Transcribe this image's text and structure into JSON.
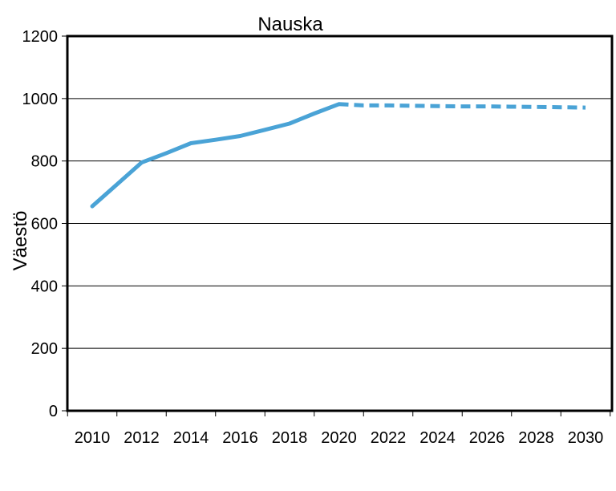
{
  "chart_data": {
    "type": "line",
    "title": "Nauska",
    "ylabel": "Väestö",
    "xlabel": "",
    "x_ticks": [
      "2010",
      "2012",
      "2014",
      "2016",
      "2018",
      "2020",
      "2022",
      "2024",
      "2026",
      "2028",
      "2030"
    ],
    "y_ticks": [
      "0",
      "200",
      "400",
      "600",
      "800",
      "1000",
      "1200"
    ],
    "xlim": [
      2010,
      2030
    ],
    "ylim": [
      0,
      1200
    ],
    "grid": true,
    "legend": "none",
    "series": [
      {
        "style": "solid",
        "color": "#4aa3d6",
        "x": [
          2010,
          2011,
          2012,
          2013,
          2014,
          2015,
          2016,
          2017,
          2018,
          2019,
          2020
        ],
        "values": [
          655,
          725,
          795,
          825,
          857,
          868,
          880,
          900,
          920,
          952,
          982
        ]
      },
      {
        "style": "dashed",
        "color": "#4aa3d6",
        "x": [
          2020,
          2021,
          2022,
          2023,
          2024,
          2025,
          2026,
          2027,
          2028,
          2029,
          2030
        ],
        "values": [
          982,
          978,
          978,
          977,
          976,
          975,
          975,
          974,
          973,
          972,
          971
        ]
      }
    ]
  }
}
